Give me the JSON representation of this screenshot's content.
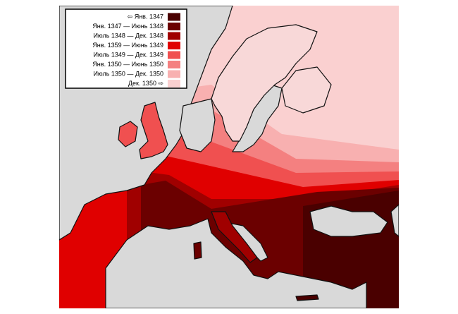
{
  "legend": {
    "items": [
      {
        "label": "⇦ Янв. 1347",
        "color": "#4a0000"
      },
      {
        "label": "Янв. 1347 — Июнь 1348",
        "color": "#6b0000"
      },
      {
        "label": "Июль 1348 — Дек. 1348",
        "color": "#a00000"
      },
      {
        "label": "Янв. 1359 — Июнь 1349",
        "color": "#e00000"
      },
      {
        "label": "Июль 1349 — Дек. 1349",
        "color": "#f05050"
      },
      {
        "label": "Янв. 1350 — Июнь 1350",
        "color": "#f48080"
      },
      {
        "label": "Июль 1350 — Дек. 1350",
        "color": "#f8b0b0"
      },
      {
        "label": "Дек. 1350 ⇨",
        "color": "#fad0d0"
      }
    ]
  }
}
